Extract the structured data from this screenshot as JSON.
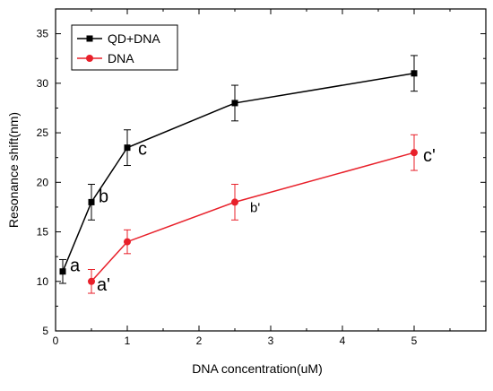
{
  "chart_data": {
    "type": "line",
    "xlabel": "DNA concentration(uM)",
    "ylabel": "Resonance shift(nm)",
    "xlim": [
      0,
      6
    ],
    "ylim": [
      5,
      37.5
    ],
    "xticks": [
      0,
      1,
      2,
      3,
      4,
      5
    ],
    "yticks": [
      5,
      10,
      15,
      20,
      25,
      30,
      35
    ],
    "grid": false,
    "legend_position": "top-left",
    "series": [
      {
        "name": "QD+DNA",
        "color": "#000000",
        "marker": "square",
        "x": [
          0.1,
          0.5,
          1,
          2.5,
          5
        ],
        "y": [
          11,
          18,
          23.5,
          28,
          31
        ],
        "error": [
          1.2,
          1.8,
          1.8,
          1.8,
          1.8
        ],
        "point_labels": [
          "a",
          "b",
          "c",
          "",
          ""
        ]
      },
      {
        "name": "DNA",
        "color": "#e8202a",
        "marker": "circle",
        "x": [
          0.5,
          1,
          2.5,
          5
        ],
        "y": [
          10,
          14,
          18,
          23
        ],
        "error": [
          1.2,
          1.2,
          1.8,
          1.8
        ],
        "point_labels": [
          "a'",
          "",
          "b'",
          "c'"
        ]
      }
    ]
  }
}
